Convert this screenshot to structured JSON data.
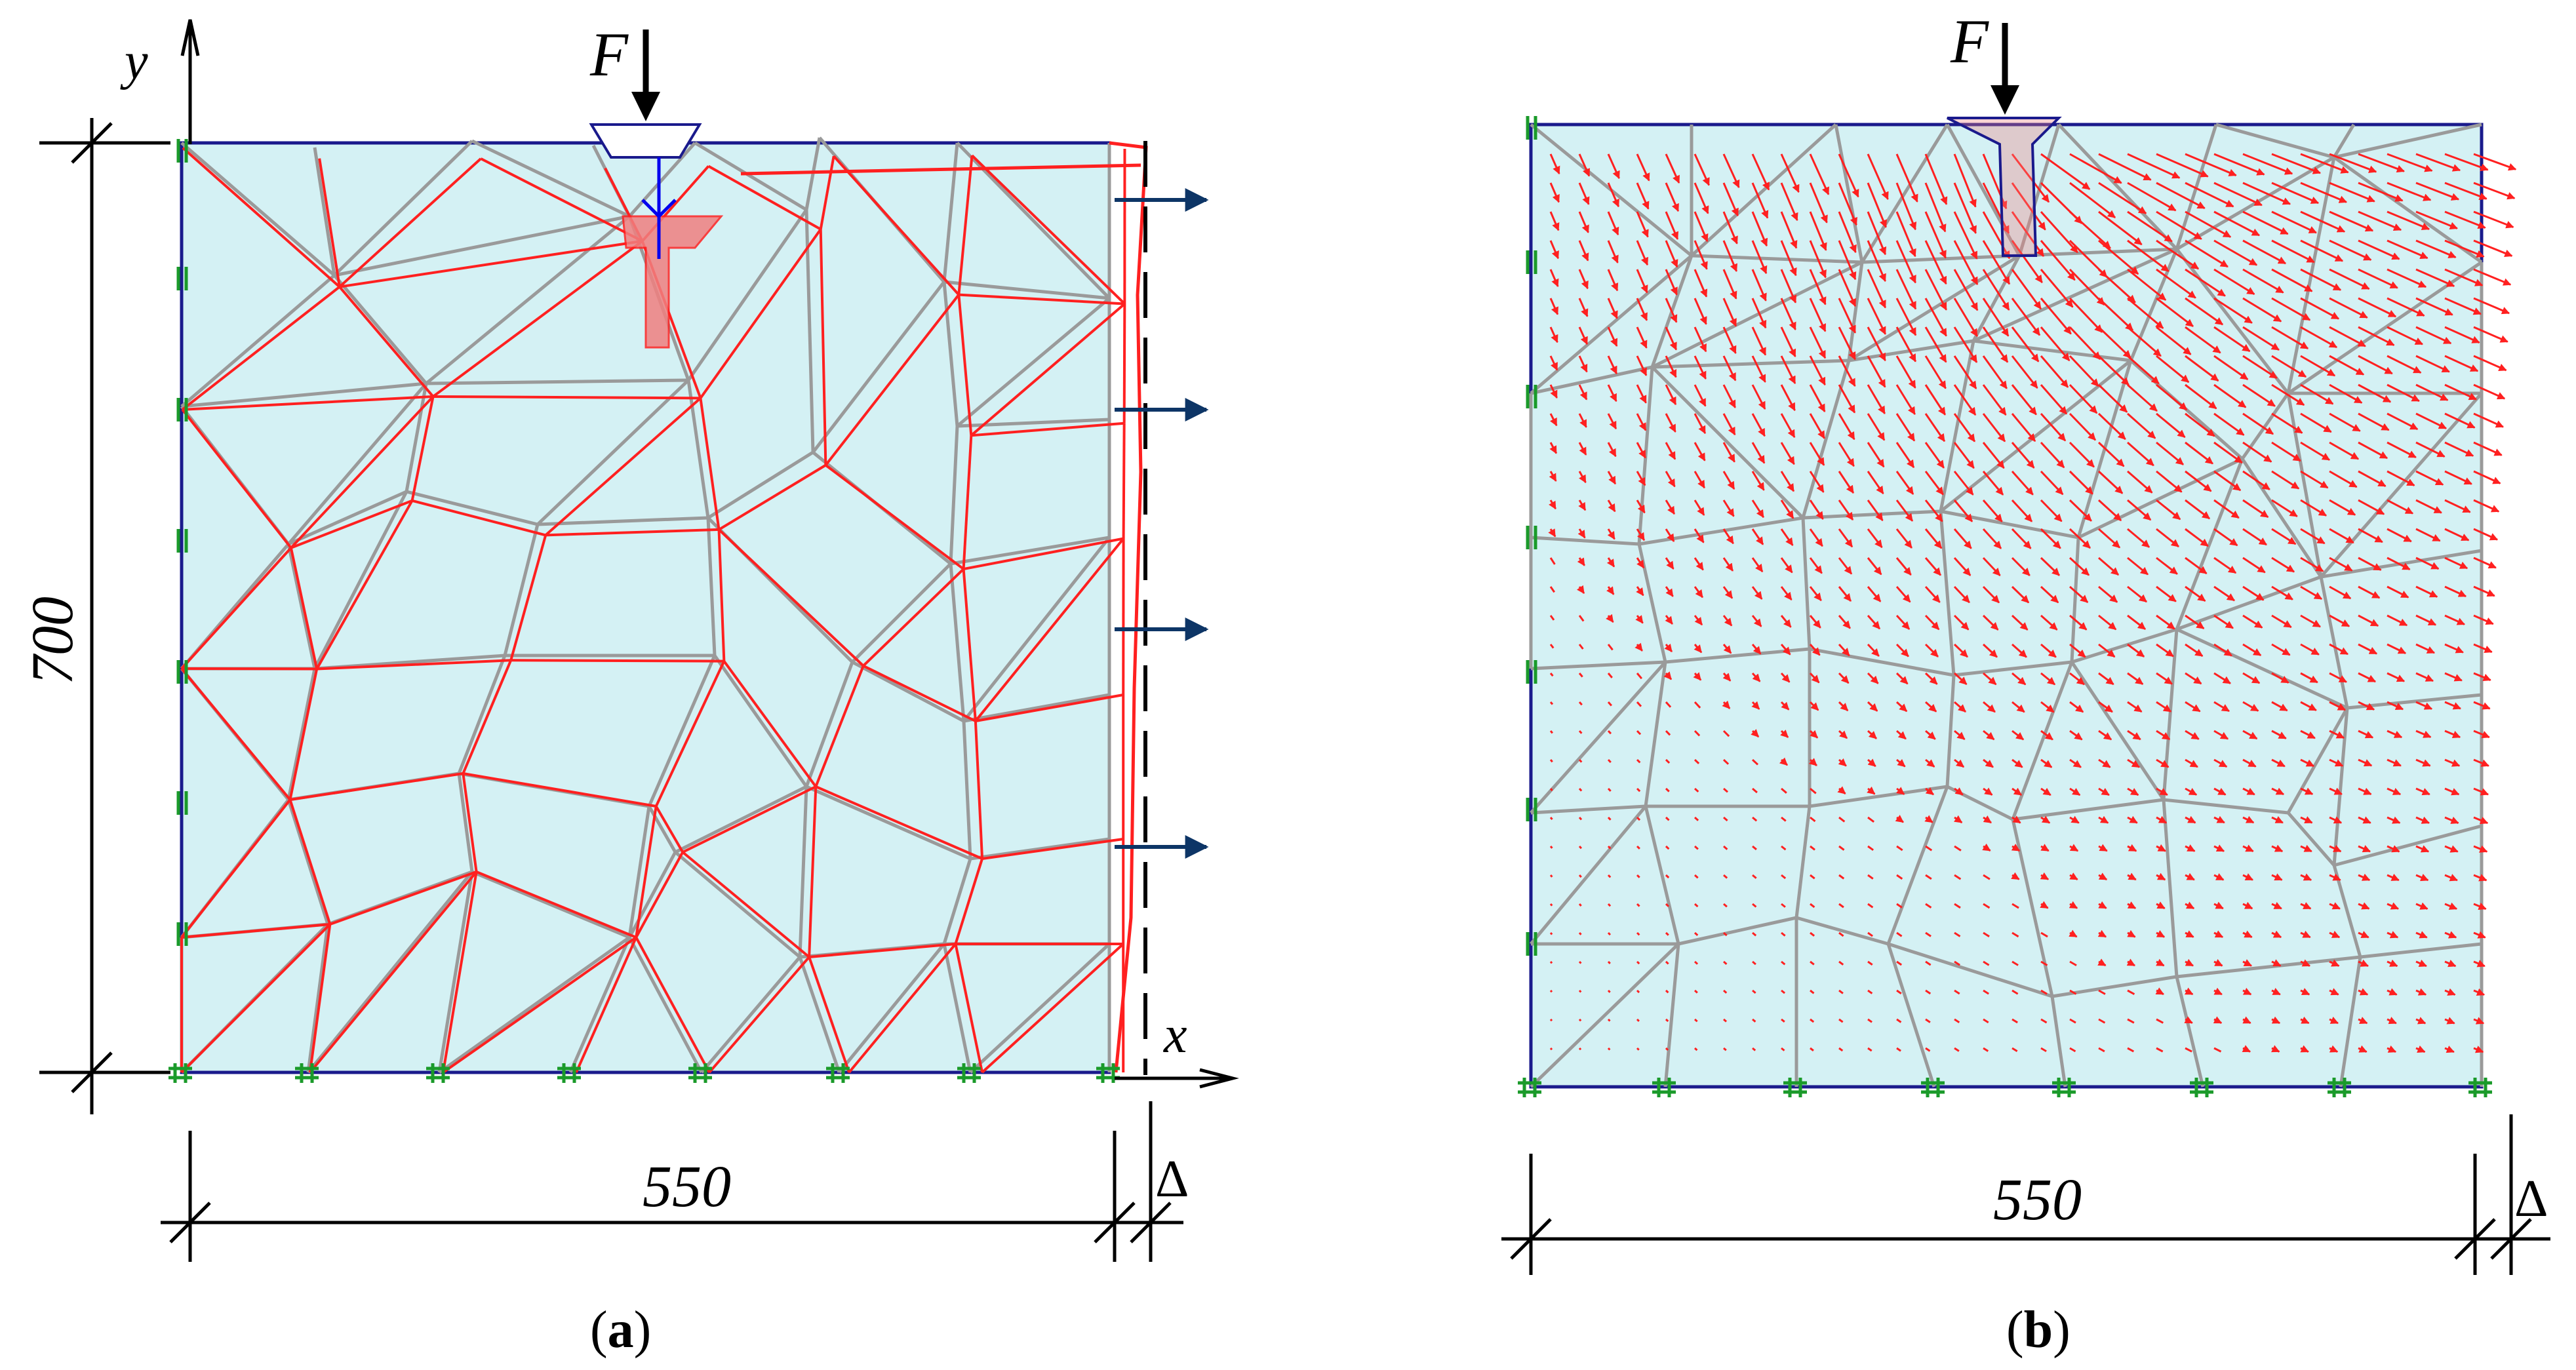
{
  "figure": {
    "panel_a": {
      "caption_open": "(",
      "caption_letter": "a",
      "caption_close": ")",
      "load_label": "F",
      "x_axis_label": "x",
      "y_axis_label": "y",
      "height_dim": "700",
      "width_dim": "550",
      "delta_dim": "Δ"
    },
    "panel_b": {
      "caption_open": "(",
      "caption_letter": "b",
      "caption_close": ")",
      "load_label": "F",
      "width_dim": "550",
      "delta_dim": "Δ"
    },
    "colors": {
      "fill": "#d4f1f4",
      "border": "#1a1a8c",
      "mesh": "#9a9a9a",
      "deformed": "#ff2020",
      "support": "#1a9a2a",
      "arrow": "#0d3566",
      "load": "#0000ee"
    }
  }
}
